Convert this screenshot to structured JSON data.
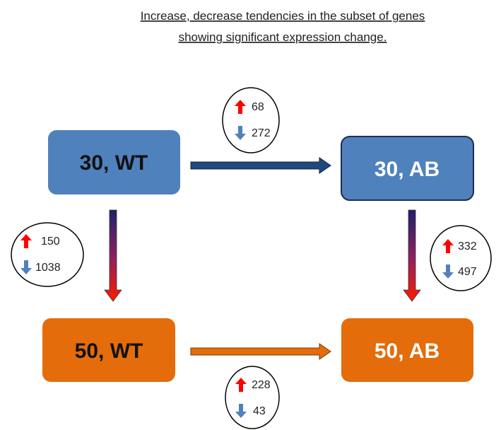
{
  "title": [
    "Increase, decrease tendencies in the subset of genes",
    "showing significant expression change."
  ],
  "nodes": [
    {
      "label": "30, WT"
    },
    {
      "label": "30, AB"
    },
    {
      "label": "50, WT"
    },
    {
      "label": "50, AB"
    }
  ],
  "edges": [
    {
      "from": "30, WT",
      "to": "30, AB",
      "up": 68,
      "down": 272
    },
    {
      "from": "30, WT",
      "to": "50, WT",
      "up": 150,
      "down": 1038
    },
    {
      "from": "30, AB",
      "to": "50, AB",
      "up": 332,
      "down": 497
    },
    {
      "from": "50, WT",
      "to": "50, AB",
      "up": 228,
      "down": 43
    }
  ]
}
